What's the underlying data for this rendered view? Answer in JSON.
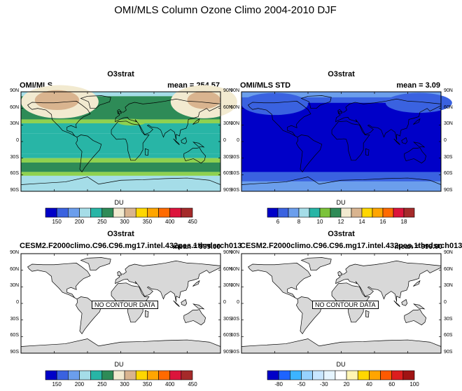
{
  "title": "OMI/MLS Column Ozone Climo 2004-2010 DJF",
  "panels": [
    {
      "plot_title": "O3strat",
      "left_string": "OMI/MLS",
      "right_string": "mean = 254.57",
      "lat_labels": [
        "90N",
        "60N",
        "30N",
        "0",
        "30S",
        "60S",
        "90S"
      ],
      "colorbar": {
        "unit": "DU",
        "labels": [
          "150",
          "200",
          "250",
          "300",
          "350",
          "400",
          "450"
        ],
        "colors": [
          "#0000c8",
          "#3a62e0",
          "#6b9eec",
          "#a5dde8",
          "#28b5a6",
          "#2e8b57",
          "#f2ead0",
          "#d9b48f",
          "#ffd700",
          "#ffa500",
          "#ff6a00",
          "#dc143c",
          "#a52a2a"
        ]
      },
      "bands": [
        "#a5dde8",
        "#28b5a6",
        "#2e8b57",
        "#8fd14f",
        "#28b5a6",
        "#28b5a6",
        "#8fd14f",
        "#2e8b57",
        "#8fd14f",
        "#a5dde8"
      ]
    },
    {
      "plot_title": "O3strat",
      "left_string": "OMI/MLS STD",
      "right_string": "mean =   3.09",
      "lat_labels": [
        "90N",
        "60N",
        "30N",
        "0",
        "30S",
        "60S",
        "90S"
      ],
      "colorbar": {
        "unit": "DU",
        "labels": [
          "6",
          "8",
          "10",
          "12",
          "14",
          "16",
          "18"
        ],
        "colors": [
          "#0000c8",
          "#3a62e0",
          "#6b9eec",
          "#a5dde8",
          "#28b5a6",
          "#7bc33a",
          "#2e8b57",
          "#f2ead0",
          "#d9b48f",
          "#ffd700",
          "#ffa500",
          "#ff6a00",
          "#dc143c",
          "#a52a2a"
        ]
      }
    },
    {
      "plot_title": "O3strat",
      "left_string": "CESM2.F2000climo.C96.C96.mg17.intel.432pes.1thrdsrch013",
      "right_string": "mean = 999.00",
      "no_data": "NO CONTOUR DATA",
      "lat_labels": [
        "90N",
        "60N",
        "30N",
        "0",
        "30S",
        "60S",
        "90S"
      ],
      "colorbar": {
        "unit": "DU",
        "labels": [
          "150",
          "200",
          "250",
          "300",
          "350",
          "400",
          "450"
        ],
        "colors": [
          "#0000c8",
          "#3a62e0",
          "#6b9eec",
          "#a5dde8",
          "#28b5a6",
          "#2e8b57",
          "#f2ead0",
          "#d9b48f",
          "#ffd700",
          "#ffa500",
          "#ff6a00",
          "#dc143c",
          "#a52a2a"
        ]
      }
    },
    {
      "plot_title": "O3strat",
      "left_string": "CESM2.F2000climo.C96.C96.mg17.intel.432pes.1thrdsrch013",
      "right_string": "mean = 999.00",
      "no_data": "NO CONTOUR DATA",
      "lat_labels": [
        "90N",
        "60N",
        "30N",
        "0",
        "30S",
        "60S",
        "90S"
      ],
      "colorbar": {
        "unit": "DU",
        "labels": [
          "-80",
          "-50",
          "-30",
          "20",
          "40",
          "60",
          "100"
        ],
        "colors": [
          "#0000c8",
          "#1e64ff",
          "#3cb4ff",
          "#96d2ff",
          "#c8e6ff",
          "#e6f5ff",
          "#ffffff",
          "#fff5b4",
          "#ffd700",
          "#ffa500",
          "#ff5a00",
          "#dc1e1e",
          "#a01414"
        ]
      }
    }
  ]
}
